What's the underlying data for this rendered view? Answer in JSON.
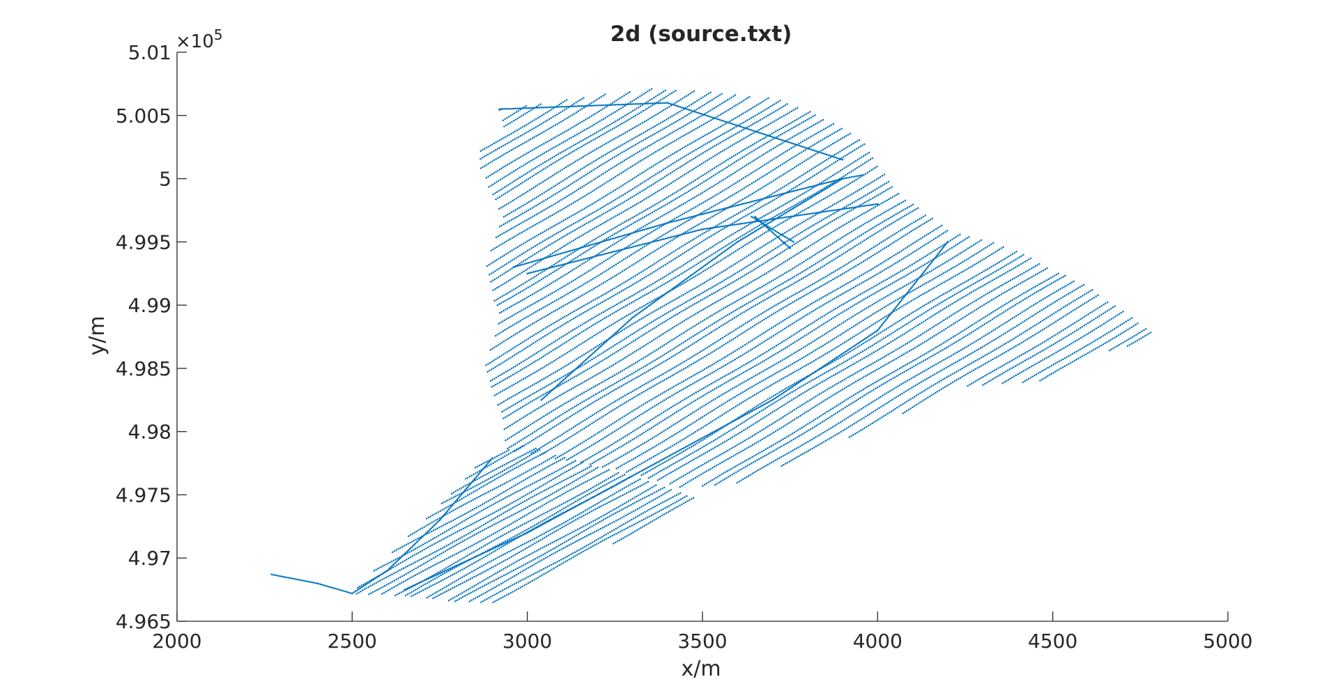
{
  "chart_data": {
    "type": "scatter",
    "title": "2d (source.txt)",
    "xlabel": "x/m",
    "ylabel": "y/m",
    "xlim": [
      2000,
      5000
    ],
    "ylim": [
      496500,
      501000
    ],
    "x_ticks": [
      2000,
      2500,
      3000,
      3500,
      4000,
      4500,
      5000
    ],
    "x_tick_labels": [
      "2000",
      "2500",
      "3000",
      "3500",
      "4000",
      "4500",
      "5000"
    ],
    "y_ticks": [
      496500,
      497000,
      497500,
      498000,
      498500,
      499000,
      499500,
      500000,
      500500,
      501000
    ],
    "y_tick_labels": [
      "4.965",
      "4.97",
      "4.975",
      "4.98",
      "4.985",
      "4.99",
      "4.995",
      "5",
      "5.005",
      "5.01"
    ],
    "y_exponent_base": "×10",
    "y_exponent_power": "5",
    "grid": false,
    "legend": "none",
    "marker": "dot",
    "color": "#0072BD",
    "series": [
      {
        "survey_regions": [
          {
            "polygon": [
              [
                2920,
                500550
              ],
              [
                3050,
                500600
              ],
              [
                3200,
                500660
              ],
              [
                3350,
                500710
              ],
              [
                3500,
                500690
              ],
              [
                3700,
                500640
              ],
              [
                3820,
                500520
              ],
              [
                3960,
                500300
              ],
              [
                4050,
                499900
              ],
              [
                4200,
                499600
              ],
              [
                4380,
                499450
              ],
              [
                4600,
                499150
              ],
              [
                4810,
                498740
              ],
              [
                4600,
                498600
              ],
              [
                4470,
                498400
              ],
              [
                4230,
                498350
              ],
              [
                4000,
                498050
              ],
              [
                3830,
                497850
              ],
              [
                3620,
                497600
              ],
              [
                3450,
                497550
              ],
              [
                3250,
                497700
              ],
              [
                3050,
                497800
              ],
              [
                2940,
                497850
              ],
              [
                2930,
                498100
              ],
              [
                2880,
                498500
              ],
              [
                2920,
                498900
              ],
              [
                2880,
                499300
              ],
              [
                2930,
                499700
              ],
              [
                2860,
                500100
              ],
              [
                2870,
                500300
              ],
              [
                2940,
                500350
              ]
            ],
            "line_direction": [
              1.0,
              -0.6
            ],
            "line_spacing": 30
          },
          {
            "polygon": [
              [
                2880,
                497800
              ],
              [
                3000,
                497900
              ],
              [
                3100,
                497800
              ],
              [
                3300,
                497650
              ],
              [
                3480,
                497480
              ],
              [
                3350,
                497250
              ],
              [
                3120,
                496950
              ],
              [
                2920,
                496650
              ],
              [
                2800,
                496650
              ],
              [
                2650,
                496700
              ],
              [
                2500,
                496720
              ],
              [
                2560,
                496900
              ],
              [
                2650,
                497150
              ],
              [
                2780,
                497500
              ]
            ],
            "line_direction": [
              1.0,
              -0.55
            ],
            "line_spacing": 22
          }
        ],
        "tracks": [
          [
            [
              2920,
              500550
            ],
            [
              3400,
              500600
            ],
            [
              3900,
              500150
            ]
          ],
          [
            [
              2960,
              499300
            ],
            [
              3400,
              499650
            ],
            [
              3900,
              500000
            ],
            [
              3960,
              500030
            ]
          ],
          [
            [
              3000,
              499250
            ],
            [
              3500,
              499600
            ],
            [
              4000,
              499800
            ]
          ],
          [
            [
              3040,
              498250
            ],
            [
              3300,
              498900
            ],
            [
              3600,
              499500
            ],
            [
              3900,
              500000
            ]
          ],
          [
            [
              2650,
              496750
            ],
            [
              3000,
              497200
            ],
            [
              3300,
              497650
            ],
            [
              3700,
              498250
            ],
            [
              4000,
              498800
            ],
            [
              4200,
              499500
            ]
          ],
          [
            [
              2270,
              496870
            ],
            [
              2400,
              496800
            ],
            [
              2500,
              496720
            ],
            [
              2600,
              496900
            ],
            [
              2750,
              497300
            ],
            [
              2900,
              497790
            ]
          ],
          [
            [
              3650,
              499700
            ],
            [
              3750,
              499450
            ]
          ],
          [
            [
              3640,
              499700
            ],
            [
              3700,
              499600
            ],
            [
              3760,
              499500
            ]
          ]
        ]
      }
    ]
  }
}
